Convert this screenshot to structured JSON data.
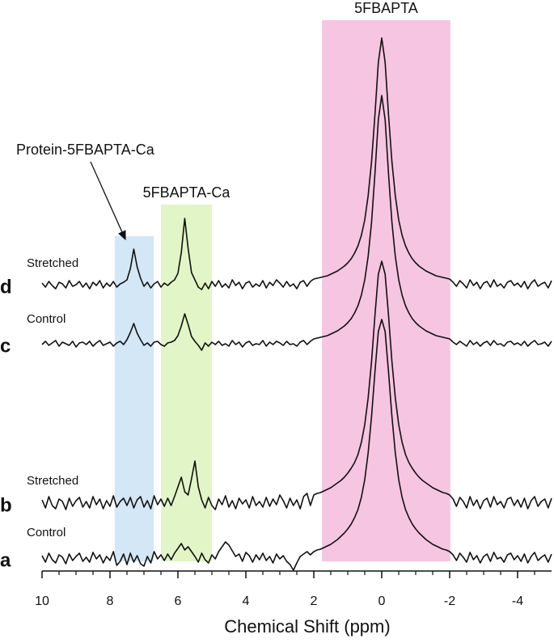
{
  "chart_data": {
    "type": "line",
    "xlabel": "Chemical Shift (ppm)",
    "xlim": [
      10,
      -5
    ],
    "xticks": [
      10,
      8,
      6,
      4,
      2,
      0,
      -2,
      -4
    ],
    "xminorticks": [
      9.5,
      9,
      8.5,
      7.5,
      7,
      6.5,
      5.5,
      5,
      4.5,
      3.5,
      3,
      2.5,
      1.5,
      1,
      0.5,
      -0.5,
      -1,
      -1.5,
      -2.5,
      -3,
      -3.5,
      -4.5
    ],
    "regions": [
      {
        "label": "Protein-5FBAPTA-Ca",
        "range": [
          7.86,
          6.71
        ],
        "color": "#d3e7f6"
      },
      {
        "label": "5FBAPTA-Ca",
        "range": [
          6.5,
          5.0
        ],
        "color": "#e2f5c6"
      },
      {
        "label": "5FBAPTA",
        "range": [
          1.76,
          -2.02
        ],
        "color": "#f6c5e2"
      }
    ],
    "x": [
      10,
      9.9,
      9.8,
      9.7,
      9.6,
      9.5,
      9.4,
      9.3,
      9.2,
      9.1,
      9,
      8.9,
      8.8,
      8.7,
      8.6,
      8.5,
      8.4,
      8.3,
      8.2,
      8.1,
      8,
      7.9,
      7.8,
      7.7,
      7.6,
      7.5,
      7.4,
      7.3,
      7.2,
      7.1,
      7,
      6.9,
      6.8,
      6.7,
      6.6,
      6.5,
      6.4,
      6.3,
      6.2,
      6.1,
      6,
      5.9,
      5.8,
      5.7,
      5.6,
      5.5,
      5.4,
      5.3,
      5.2,
      5.1,
      5,
      4.9,
      4.8,
      4.7,
      4.6,
      4.5,
      4.4,
      4.3,
      4.2,
      4.1,
      4,
      3.9,
      3.8,
      3.7,
      3.6,
      3.5,
      3.4,
      3.3,
      3.2,
      3.1,
      3,
      2.9,
      2.8,
      2.7,
      2.6,
      2.5,
      2.4,
      2.3,
      2.2,
      2.1,
      2,
      1.9,
      1.8,
      1.7,
      1.6,
      1.5,
      1.4,
      1.3,
      1.2,
      1.1,
      1,
      0.9,
      0.8,
      0.7,
      0.6,
      0.5,
      0.4,
      0.3,
      0.2,
      0.1,
      0,
      -0.1,
      -0.2,
      -0.3,
      -0.4,
      -0.5,
      -0.6,
      -0.7,
      -0.8,
      -0.9,
      -1,
      -1.1,
      -1.2,
      -1.3,
      -1.4,
      -1.5,
      -1.6,
      -1.7,
      -1.8,
      -1.9,
      -2,
      -2.1,
      -2.2,
      -2.3,
      -2.4,
      -2.5,
      -2.6,
      -2.7,
      -2.8,
      -2.9,
      -3,
      -3.1,
      -3.2,
      -3.3,
      -3.4,
      -3.5,
      -3.6,
      -3.7,
      -3.8,
      -3.9,
      -4,
      -4.1,
      -4.2,
      -4.3,
      -4.4,
      -4.5,
      -4.6,
      -4.7,
      -4.8,
      -4.9,
      -5
    ],
    "series": [
      {
        "letter": "d",
        "name": "Stretched",
        "color": "#111111",
        "values": [
          2,
          -3,
          4,
          -1,
          -5,
          3,
          1,
          -4,
          5,
          -2,
          0,
          4,
          -3,
          2,
          -5,
          3,
          -1,
          5,
          -4,
          2,
          -2,
          4,
          -3,
          1,
          3,
          6,
          20,
          44,
          22,
          8,
          -2,
          3,
          -4,
          1,
          4,
          -3,
          2,
          -1,
          3,
          6,
          14,
          40,
          82,
          45,
          15,
          6,
          -3,
          -6,
          2,
          -5,
          4,
          -2,
          5,
          -3,
          1,
          -4,
          6,
          -1,
          3,
          -5,
          2,
          4,
          -3,
          1,
          -2,
          5,
          -4,
          3,
          -1,
          6,
          2,
          -3,
          4,
          -2,
          1,
          -5,
          3,
          5,
          -2,
          4,
          7,
          8,
          9,
          10,
          11,
          13,
          15,
          17,
          20,
          23,
          27,
          32,
          39,
          48,
          61,
          80,
          110,
          152,
          210,
          275,
          305,
          275,
          210,
          152,
          110,
          80,
          61,
          48,
          39,
          32,
          27,
          23,
          20,
          17,
          15,
          13,
          11,
          10,
          9,
          8,
          7,
          3,
          -2,
          5,
          1,
          -4,
          6,
          -1,
          3,
          -5,
          2,
          4,
          -3,
          6,
          -2,
          1,
          -4,
          3,
          5,
          -1,
          2,
          -3,
          4,
          -5,
          2,
          6,
          -2,
          1,
          3,
          -4,
          5
        ]
      },
      {
        "letter": "c",
        "name": "Control",
        "color": "#111111",
        "values": [
          -1,
          3,
          -2,
          1,
          4,
          -3,
          2,
          0,
          -2,
          3,
          -4,
          1,
          2,
          -1,
          3,
          -3,
          1,
          4,
          -2,
          0,
          2,
          -3,
          1,
          3,
          -1,
          5,
          14,
          25,
          13,
          5,
          -2,
          1,
          -3,
          2,
          3,
          -1,
          -3,
          1,
          2,
          4,
          10,
          22,
          37,
          24,
          9,
          3,
          -2,
          -8,
          1,
          -3,
          2,
          -1,
          3,
          -2,
          0,
          -3,
          4,
          -1,
          2,
          -4,
          1,
          3,
          -2,
          0,
          -1,
          4,
          -3,
          2,
          -1,
          3,
          1,
          -2,
          3,
          -1,
          0,
          -3,
          2,
          4,
          -1,
          3,
          6,
          7,
          8,
          9,
          10,
          12,
          14,
          16,
          19,
          22,
          26,
          31,
          38,
          47,
          60,
          79,
          108,
          150,
          210,
          277,
          307,
          277,
          210,
          150,
          108,
          79,
          60,
          47,
          38,
          31,
          26,
          22,
          19,
          16,
          14,
          12,
          10,
          9,
          8,
          7,
          6,
          2,
          -1,
          3,
          0,
          -3,
          4,
          -1,
          2,
          -3,
          1,
          3,
          -2,
          4,
          -1,
          0,
          -3,
          2,
          3,
          -1,
          1,
          -2,
          3,
          -3,
          1,
          4,
          -1,
          0,
          2,
          -3,
          3
        ]
      },
      {
        "letter": "b",
        "name": "Stretched",
        "color": "#111111",
        "values": [
          4,
          -6,
          8,
          -3,
          -7,
          5,
          2,
          -8,
          6,
          -4,
          3,
          7,
          -5,
          2,
          -6,
          8,
          -2,
          5,
          -7,
          3,
          -4,
          9,
          -5,
          2,
          6,
          -3,
          7,
          -6,
          4,
          8,
          -5,
          3,
          -7,
          9,
          -2,
          5,
          -4,
          6,
          -3,
          8,
          20,
          32,
          14,
          10,
          30,
          52,
          20,
          4,
          -6,
          7,
          -3,
          -8,
          5,
          -2,
          9,
          -5,
          3,
          -7,
          6,
          -1,
          4,
          -6,
          8,
          -3,
          2,
          -5,
          7,
          -4,
          5,
          -2,
          10,
          3,
          -6,
          6,
          -3,
          4,
          -7,
          8,
          12,
          -3,
          10,
          12,
          13,
          15,
          17,
          19,
          22,
          25,
          28,
          32,
          37,
          43,
          50,
          60,
          75,
          97,
          130,
          175,
          232,
          283,
          299,
          283,
          232,
          175,
          130,
          97,
          75,
          60,
          50,
          43,
          37,
          32,
          28,
          25,
          22,
          19,
          17,
          15,
          13,
          12,
          10,
          5,
          -4,
          7,
          2,
          -6,
          8,
          -3,
          4,
          -7,
          3,
          6,
          -5,
          8,
          -2,
          2,
          -6,
          5,
          7,
          -3,
          4,
          -5,
          6,
          -7,
          3,
          8,
          -4,
          2,
          5,
          -6,
          6
        ]
      },
      {
        "letter": "a",
        "name": "Control",
        "color": "#111111",
        "values": [
          3,
          -5,
          6,
          -2,
          -6,
          4,
          1,
          -7,
          5,
          -3,
          2,
          6,
          -4,
          1,
          -5,
          7,
          -1,
          4,
          -6,
          2,
          -3,
          8,
          -9,
          -4,
          5,
          -8,
          6,
          -5,
          3,
          -7,
          -10,
          2,
          -6,
          8,
          -1,
          4,
          -3,
          5,
          -2,
          6,
          12,
          18,
          10,
          14,
          8,
          2,
          -5,
          6,
          -2,
          -6,
          4,
          -1,
          8,
          14,
          20,
          16,
          9,
          2,
          5,
          -4,
          7,
          3,
          -5,
          4,
          -2,
          6,
          -3,
          2,
          -6,
          5,
          -1,
          3,
          -4,
          -8,
          -15,
          -6,
          2,
          5,
          8,
          4,
          8,
          10,
          11,
          13,
          15,
          17,
          20,
          23,
          27,
          31,
          36,
          42,
          50,
          60,
          75,
          97,
          130,
          175,
          230,
          280,
          295,
          280,
          230,
          175,
          130,
          97,
          75,
          60,
          50,
          42,
          36,
          31,
          27,
          23,
          20,
          17,
          15,
          13,
          11,
          10,
          8,
          4,
          -3,
          6,
          1,
          -5,
          7,
          -2,
          3,
          -6,
          2,
          5,
          -4,
          7,
          -1,
          1,
          -5,
          4,
          6,
          -2,
          3,
          -4,
          5,
          -6,
          2,
          7,
          -3,
          1,
          4,
          -5,
          5
        ]
      }
    ]
  }
}
